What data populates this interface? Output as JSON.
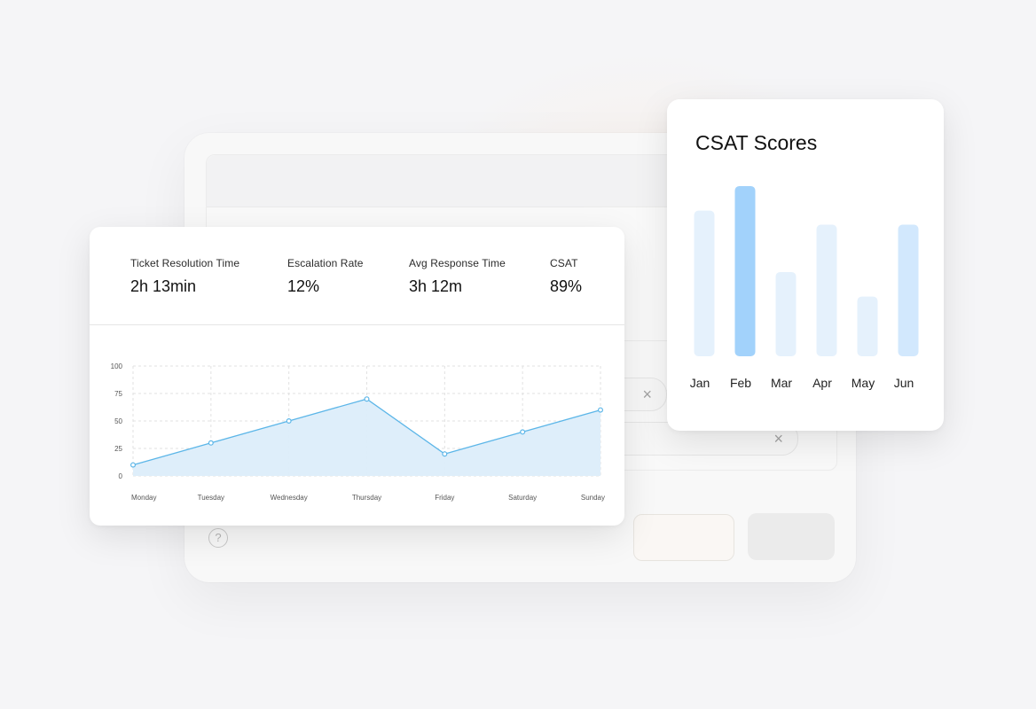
{
  "background_window": {
    "help_icon_glyph": "?",
    "chip_close_glyph": "×"
  },
  "metrics": [
    {
      "label": "Ticket Resolution Time",
      "value": "2h 13min"
    },
    {
      "label": "Escalation Rate",
      "value": "12%"
    },
    {
      "label": "Avg Response Time",
      "value": "3h 12m"
    },
    {
      "label": "CSAT",
      "value": "89%"
    }
  ],
  "colors": {
    "line": "#5cb6e8",
    "area": "#dcedfa",
    "bar_light": "#e5f1fc",
    "bar_mid": "#d2e8fd",
    "bar_highlight": "#a2d2fb"
  },
  "chart_data": [
    {
      "type": "area",
      "categories": [
        "Monday",
        "Tuesday",
        "Wednesday",
        "Thursday",
        "Friday",
        "Saturday",
        "Sunday"
      ],
      "values": [
        10,
        30,
        50,
        70,
        20,
        40,
        60
      ],
      "yticks": [
        0,
        25,
        50,
        75,
        100
      ],
      "ylim": [
        0,
        100
      ],
      "grid": true,
      "title": "",
      "xlabel": "",
      "ylabel": ""
    },
    {
      "type": "bar",
      "title": "CSAT Scores",
      "categories": [
        "Jan",
        "Feb",
        "Mar",
        "Apr",
        "May",
        "Jun"
      ],
      "values": [
        83,
        97,
        48,
        75,
        34,
        75
      ],
      "highlight": "Feb",
      "ylim": [
        0,
        100
      ],
      "grid": false
    }
  ]
}
